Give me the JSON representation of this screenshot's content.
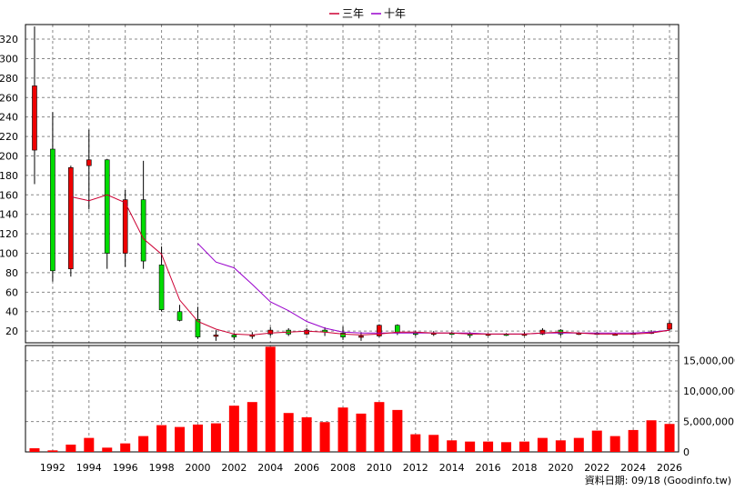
{
  "chart_data": {
    "type": "candlestick+line+bar",
    "legend": [
      {
        "name": "三年",
        "color": "#cc0033"
      },
      {
        "name": "十年",
        "color": "#9900cc"
      }
    ],
    "legend_placement": "top-center",
    "price_axis": {
      "ticks": [
        20,
        40,
        60,
        80,
        100,
        120,
        140,
        160,
        180,
        200,
        220,
        240,
        260,
        280,
        300,
        320
      ],
      "range": [
        8,
        335
      ],
      "side": "left"
    },
    "volume_axis": {
      "ticks": [
        0,
        5000000,
        10000000,
        15000000
      ],
      "tick_labels": [
        "0",
        "5,000,000",
        "10,000,000",
        "15,000,000"
      ],
      "range": [
        0,
        17500000
      ],
      "side": "right"
    },
    "x_axis": {
      "range": [
        1990.5,
        2026.5
      ],
      "ticks": [
        1992,
        1994,
        1996,
        1998,
        2000,
        2002,
        2004,
        2006,
        2008,
        2010,
        2012,
        2014,
        2016,
        2018,
        2020,
        2022,
        2024,
        2026
      ]
    },
    "grid": true,
    "source_note": "資料日期: 09/18 (Goodinfo.tw)",
    "candles": [
      {
        "year": 1991,
        "open": 206,
        "close": 272,
        "high": 333,
        "low": 171
      },
      {
        "year": 1992,
        "open": 207,
        "close": 82,
        "high": 245,
        "low": 71
      },
      {
        "year": 1993,
        "open": 84,
        "close": 188,
        "high": 190,
        "low": 76
      },
      {
        "year": 1994,
        "open": 190,
        "close": 196,
        "high": 227,
        "low": 145
      },
      {
        "year": 1995,
        "open": 196,
        "close": 100,
        "high": 197,
        "low": 84
      },
      {
        "year": 1996,
        "open": 100,
        "close": 155,
        "high": 165,
        "low": 86
      },
      {
        "year": 1997,
        "open": 155,
        "close": 92,
        "high": 195,
        "low": 84
      },
      {
        "year": 1998,
        "open": 88,
        "close": 42,
        "high": 107,
        "low": 40
      },
      {
        "year": 1999,
        "open": 40,
        "close": 31,
        "high": 47,
        "low": 30
      },
      {
        "year": 2000,
        "open": 32,
        "close": 14,
        "high": 45,
        "low": 12
      },
      {
        "year": 2001,
        "open": 15,
        "close": 16,
        "high": 21,
        "low": 10
      },
      {
        "year": 2002,
        "open": 16,
        "close": 14,
        "high": 18,
        "low": 11
      },
      {
        "year": 2003,
        "open": 15,
        "close": 16,
        "high": 19,
        "low": 12
      },
      {
        "year": 2004,
        "open": 17,
        "close": 21,
        "high": 24,
        "low": 15
      },
      {
        "year": 2005,
        "open": 21,
        "close": 17,
        "high": 23,
        "low": 15
      },
      {
        "year": 2006,
        "open": 17,
        "close": 21,
        "high": 23,
        "low": 16
      },
      {
        "year": 2007,
        "open": 21,
        "close": 19,
        "high": 24,
        "low": 15
      },
      {
        "year": 2008,
        "open": 18,
        "close": 14,
        "high": 25,
        "low": 11
      },
      {
        "year": 2009,
        "open": 14,
        "close": 15,
        "high": 19,
        "low": 10
      },
      {
        "year": 2010,
        "open": 15,
        "close": 26,
        "high": 27,
        "low": 14
      },
      {
        "year": 2011,
        "open": 26,
        "close": 18,
        "high": 27,
        "low": 16
      },
      {
        "year": 2012,
        "open": 18,
        "close": 17,
        "high": 20,
        "low": 15
      },
      {
        "year": 2013,
        "open": 17,
        "close": 18,
        "high": 20,
        "low": 15
      },
      {
        "year": 2014,
        "open": 18,
        "close": 17,
        "high": 19,
        "low": 16
      },
      {
        "year": 2015,
        "open": 17,
        "close": 16,
        "high": 19,
        "low": 13
      },
      {
        "year": 2016,
        "open": 16,
        "close": 17,
        "high": 18,
        "low": 15
      },
      {
        "year": 2017,
        "open": 17,
        "close": 16,
        "high": 18,
        "low": 15
      },
      {
        "year": 2018,
        "open": 16,
        "close": 17,
        "high": 19,
        "low": 15
      },
      {
        "year": 2019,
        "open": 17,
        "close": 21,
        "high": 23,
        "low": 16
      },
      {
        "year": 2020,
        "open": 21,
        "close": 17,
        "high": 22,
        "low": 15
      },
      {
        "year": 2021,
        "open": 17,
        "close": 18,
        "high": 19,
        "low": 16
      },
      {
        "year": 2022,
        "open": 18,
        "close": 17,
        "high": 19,
        "low": 16
      },
      {
        "year": 2023,
        "open": 17,
        "close": 17,
        "high": 18,
        "low": 16
      },
      {
        "year": 2024,
        "open": 17,
        "close": 18,
        "high": 19,
        "low": 16
      },
      {
        "year": 2025,
        "open": 18,
        "close": 19,
        "high": 21,
        "low": 17
      },
      {
        "year": 2026,
        "open": 22,
        "close": 28,
        "high": 31,
        "low": 21
      }
    ],
    "ma3_line": [
      {
        "x": 1993,
        "y": 158
      },
      {
        "x": 1994,
        "y": 154
      },
      {
        "x": 1995,
        "y": 160
      },
      {
        "x": 1996,
        "y": 152
      },
      {
        "x": 1997,
        "y": 115
      },
      {
        "x": 1998,
        "y": 99
      },
      {
        "x": 1999,
        "y": 52
      },
      {
        "x": 2000,
        "y": 30
      },
      {
        "x": 2001,
        "y": 22
      },
      {
        "x": 2002,
        "y": 17
      },
      {
        "x": 2003,
        "y": 16
      },
      {
        "x": 2004,
        "y": 18
      },
      {
        "x": 2005,
        "y": 19
      },
      {
        "x": 2006,
        "y": 20
      },
      {
        "x": 2007,
        "y": 19
      },
      {
        "x": 2008,
        "y": 17
      },
      {
        "x": 2009,
        "y": 16
      },
      {
        "x": 2010,
        "y": 17
      },
      {
        "x": 2011,
        "y": 19
      },
      {
        "x": 2012,
        "y": 19
      },
      {
        "x": 2013,
        "y": 18
      },
      {
        "x": 2014,
        "y": 18
      },
      {
        "x": 2015,
        "y": 17
      },
      {
        "x": 2016,
        "y": 17
      },
      {
        "x": 2017,
        "y": 17
      },
      {
        "x": 2018,
        "y": 17
      },
      {
        "x": 2019,
        "y": 18
      },
      {
        "x": 2020,
        "y": 19
      },
      {
        "x": 2021,
        "y": 18
      },
      {
        "x": 2022,
        "y": 17
      },
      {
        "x": 2023,
        "y": 17
      },
      {
        "x": 2024,
        "y": 17
      },
      {
        "x": 2025,
        "y": 18
      },
      {
        "x": 2026,
        "y": 21
      }
    ],
    "ma10_line": [
      {
        "x": 2000,
        "y": 110
      },
      {
        "x": 2001,
        "y": 91
      },
      {
        "x": 2002,
        "y": 85
      },
      {
        "x": 2003,
        "y": 68
      },
      {
        "x": 2004,
        "y": 50
      },
      {
        "x": 2005,
        "y": 41
      },
      {
        "x": 2006,
        "y": 30
      },
      {
        "x": 2007,
        "y": 23
      },
      {
        "x": 2008,
        "y": 19
      },
      {
        "x": 2009,
        "y": 18
      },
      {
        "x": 2010,
        "y": 18
      },
      {
        "x": 2011,
        "y": 18
      },
      {
        "x": 2012,
        "y": 18
      },
      {
        "x": 2013,
        "y": 18
      },
      {
        "x": 2014,
        "y": 18
      },
      {
        "x": 2015,
        "y": 18
      },
      {
        "x": 2016,
        "y": 17
      },
      {
        "x": 2017,
        "y": 17
      },
      {
        "x": 2018,
        "y": 17
      },
      {
        "x": 2019,
        "y": 18
      },
      {
        "x": 2020,
        "y": 18
      },
      {
        "x": 2021,
        "y": 18
      },
      {
        "x": 2022,
        "y": 18
      },
      {
        "x": 2023,
        "y": 18
      },
      {
        "x": 2024,
        "y": 18
      },
      {
        "x": 2025,
        "y": 19
      },
      {
        "x": 2026,
        "y": 21
      }
    ],
    "volume": [
      {
        "year": 1991,
        "value": 600000
      },
      {
        "year": 1992,
        "value": 250000
      },
      {
        "year": 1993,
        "value": 1200000
      },
      {
        "year": 1994,
        "value": 2300000
      },
      {
        "year": 1995,
        "value": 700000
      },
      {
        "year": 1996,
        "value": 1400000
      },
      {
        "year": 1997,
        "value": 2600000
      },
      {
        "year": 1998,
        "value": 4400000
      },
      {
        "year": 1999,
        "value": 4100000
      },
      {
        "year": 2000,
        "value": 4500000
      },
      {
        "year": 2001,
        "value": 4700000
      },
      {
        "year": 2002,
        "value": 7600000
      },
      {
        "year": 2003,
        "value": 8200000
      },
      {
        "year": 2004,
        "value": 17300000
      },
      {
        "year": 2005,
        "value": 6400000
      },
      {
        "year": 2006,
        "value": 5700000
      },
      {
        "year": 2007,
        "value": 4900000
      },
      {
        "year": 2008,
        "value": 7300000
      },
      {
        "year": 2009,
        "value": 6300000
      },
      {
        "year": 2010,
        "value": 8200000
      },
      {
        "year": 2011,
        "value": 6900000
      },
      {
        "year": 2012,
        "value": 2900000
      },
      {
        "year": 2013,
        "value": 2800000
      },
      {
        "year": 2014,
        "value": 1900000
      },
      {
        "year": 2015,
        "value": 1700000
      },
      {
        "year": 2016,
        "value": 1700000
      },
      {
        "year": 2017,
        "value": 1600000
      },
      {
        "year": 2018,
        "value": 1700000
      },
      {
        "year": 2019,
        "value": 2300000
      },
      {
        "year": 2020,
        "value": 1900000
      },
      {
        "year": 2021,
        "value": 2300000
      },
      {
        "year": 2022,
        "value": 3500000
      },
      {
        "year": 2023,
        "value": 2600000
      },
      {
        "year": 2024,
        "value": 3600000
      },
      {
        "year": 2025,
        "value": 5200000
      },
      {
        "year": 2026,
        "value": 4600000
      }
    ],
    "colors": {
      "up": "#ee0000",
      "down": "#00dd00",
      "volume": "#ff0000",
      "wick": "#000000",
      "grid": "#888888"
    }
  }
}
